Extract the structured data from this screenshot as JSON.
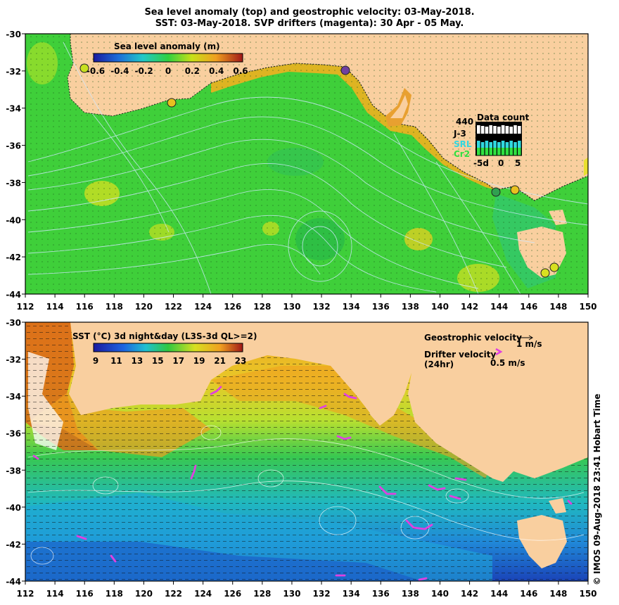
{
  "titles": {
    "line1": "Sea level anomaly (top) and geostrophic velocity: 03-May-2018.",
    "line2": "SST: 03-May-2018. SVP drifters (magenta): 30 Apr - 05 May."
  },
  "axes": {
    "lat_ticks": [
      "-30",
      "-32",
      "-34",
      "-36",
      "-38",
      "-40",
      "-42",
      "-44"
    ],
    "lon_ticks": [
      "112",
      "114",
      "116",
      "118",
      "120",
      "122",
      "124",
      "126",
      "128",
      "130",
      "132",
      "134",
      "136",
      "138",
      "140",
      "142",
      "144",
      "146",
      "148",
      "150"
    ]
  },
  "top_panel": {
    "colorbar_title": "Sea level anomaly (m)",
    "colorbar_ticks": [
      "-0.6",
      "-0.4",
      "-0.2",
      "0",
      "0.2",
      "0.4",
      "0.6"
    ],
    "data_count": {
      "title": "Data count",
      "max_label": "440",
      "missions": [
        "J-3",
        "SRL",
        "Cr2"
      ],
      "x_ticks": [
        "-5d",
        "0",
        "5"
      ]
    }
  },
  "bottom_panel": {
    "colorbar_title": "SST (°C) 3d night&day (L3S-3d QL>=2)",
    "colorbar_ticks": [
      "9",
      "11",
      "13",
      "15",
      "17",
      "19",
      "21",
      "23"
    ],
    "legend": {
      "geo_label": "Geostrophic velocity",
      "geo_scale": "1 m/s",
      "drifter_label": "Drifter velocity",
      "drifter_sub": "(24hr)",
      "drifter_scale": "0.5 m/s"
    }
  },
  "side_text": "© IMOS 09-Aug-2018 23:41 Hobart Time",
  "colors": {
    "land": "#f9cf9f",
    "sla_ocean": "#3fcf3a",
    "drifter": "#e040e0",
    "contour": "#9ff5f5"
  }
}
